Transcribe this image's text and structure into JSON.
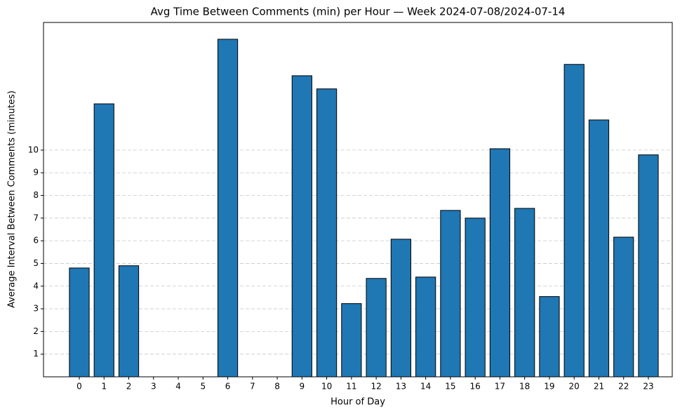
{
  "chart_data": {
    "type": "bar",
    "title": "Avg Time Between Comments (min) per Hour — Week 2024-07-08/2024-07-14",
    "x_label": "Hour of Day",
    "y_label": "Average Interval Between Comments (minutes)",
    "categories": [
      "0",
      "1",
      "2",
      "3",
      "4",
      "5",
      "6",
      "7",
      "8",
      "9",
      "10",
      "11",
      "12",
      "13",
      "14",
      "15",
      "16",
      "17",
      "18",
      "19",
      "20",
      "21",
      "22",
      "23"
    ],
    "values": [
      4.8,
      12.04,
      4.9,
      0,
      0,
      0,
      14.89,
      0,
      0,
      13.28,
      12.7,
      3.23,
      4.34,
      6.07,
      4.4,
      7.34,
      7.0,
      10.06,
      7.43,
      3.54,
      13.78,
      11.33,
      6.16,
      9.79
    ],
    "color": "#1f77b4",
    "ylim": [
      0,
      15.63
    ],
    "yticks": [
      1,
      2,
      3,
      4,
      5,
      6,
      7,
      8,
      9,
      10
    ],
    "grid": true
  }
}
